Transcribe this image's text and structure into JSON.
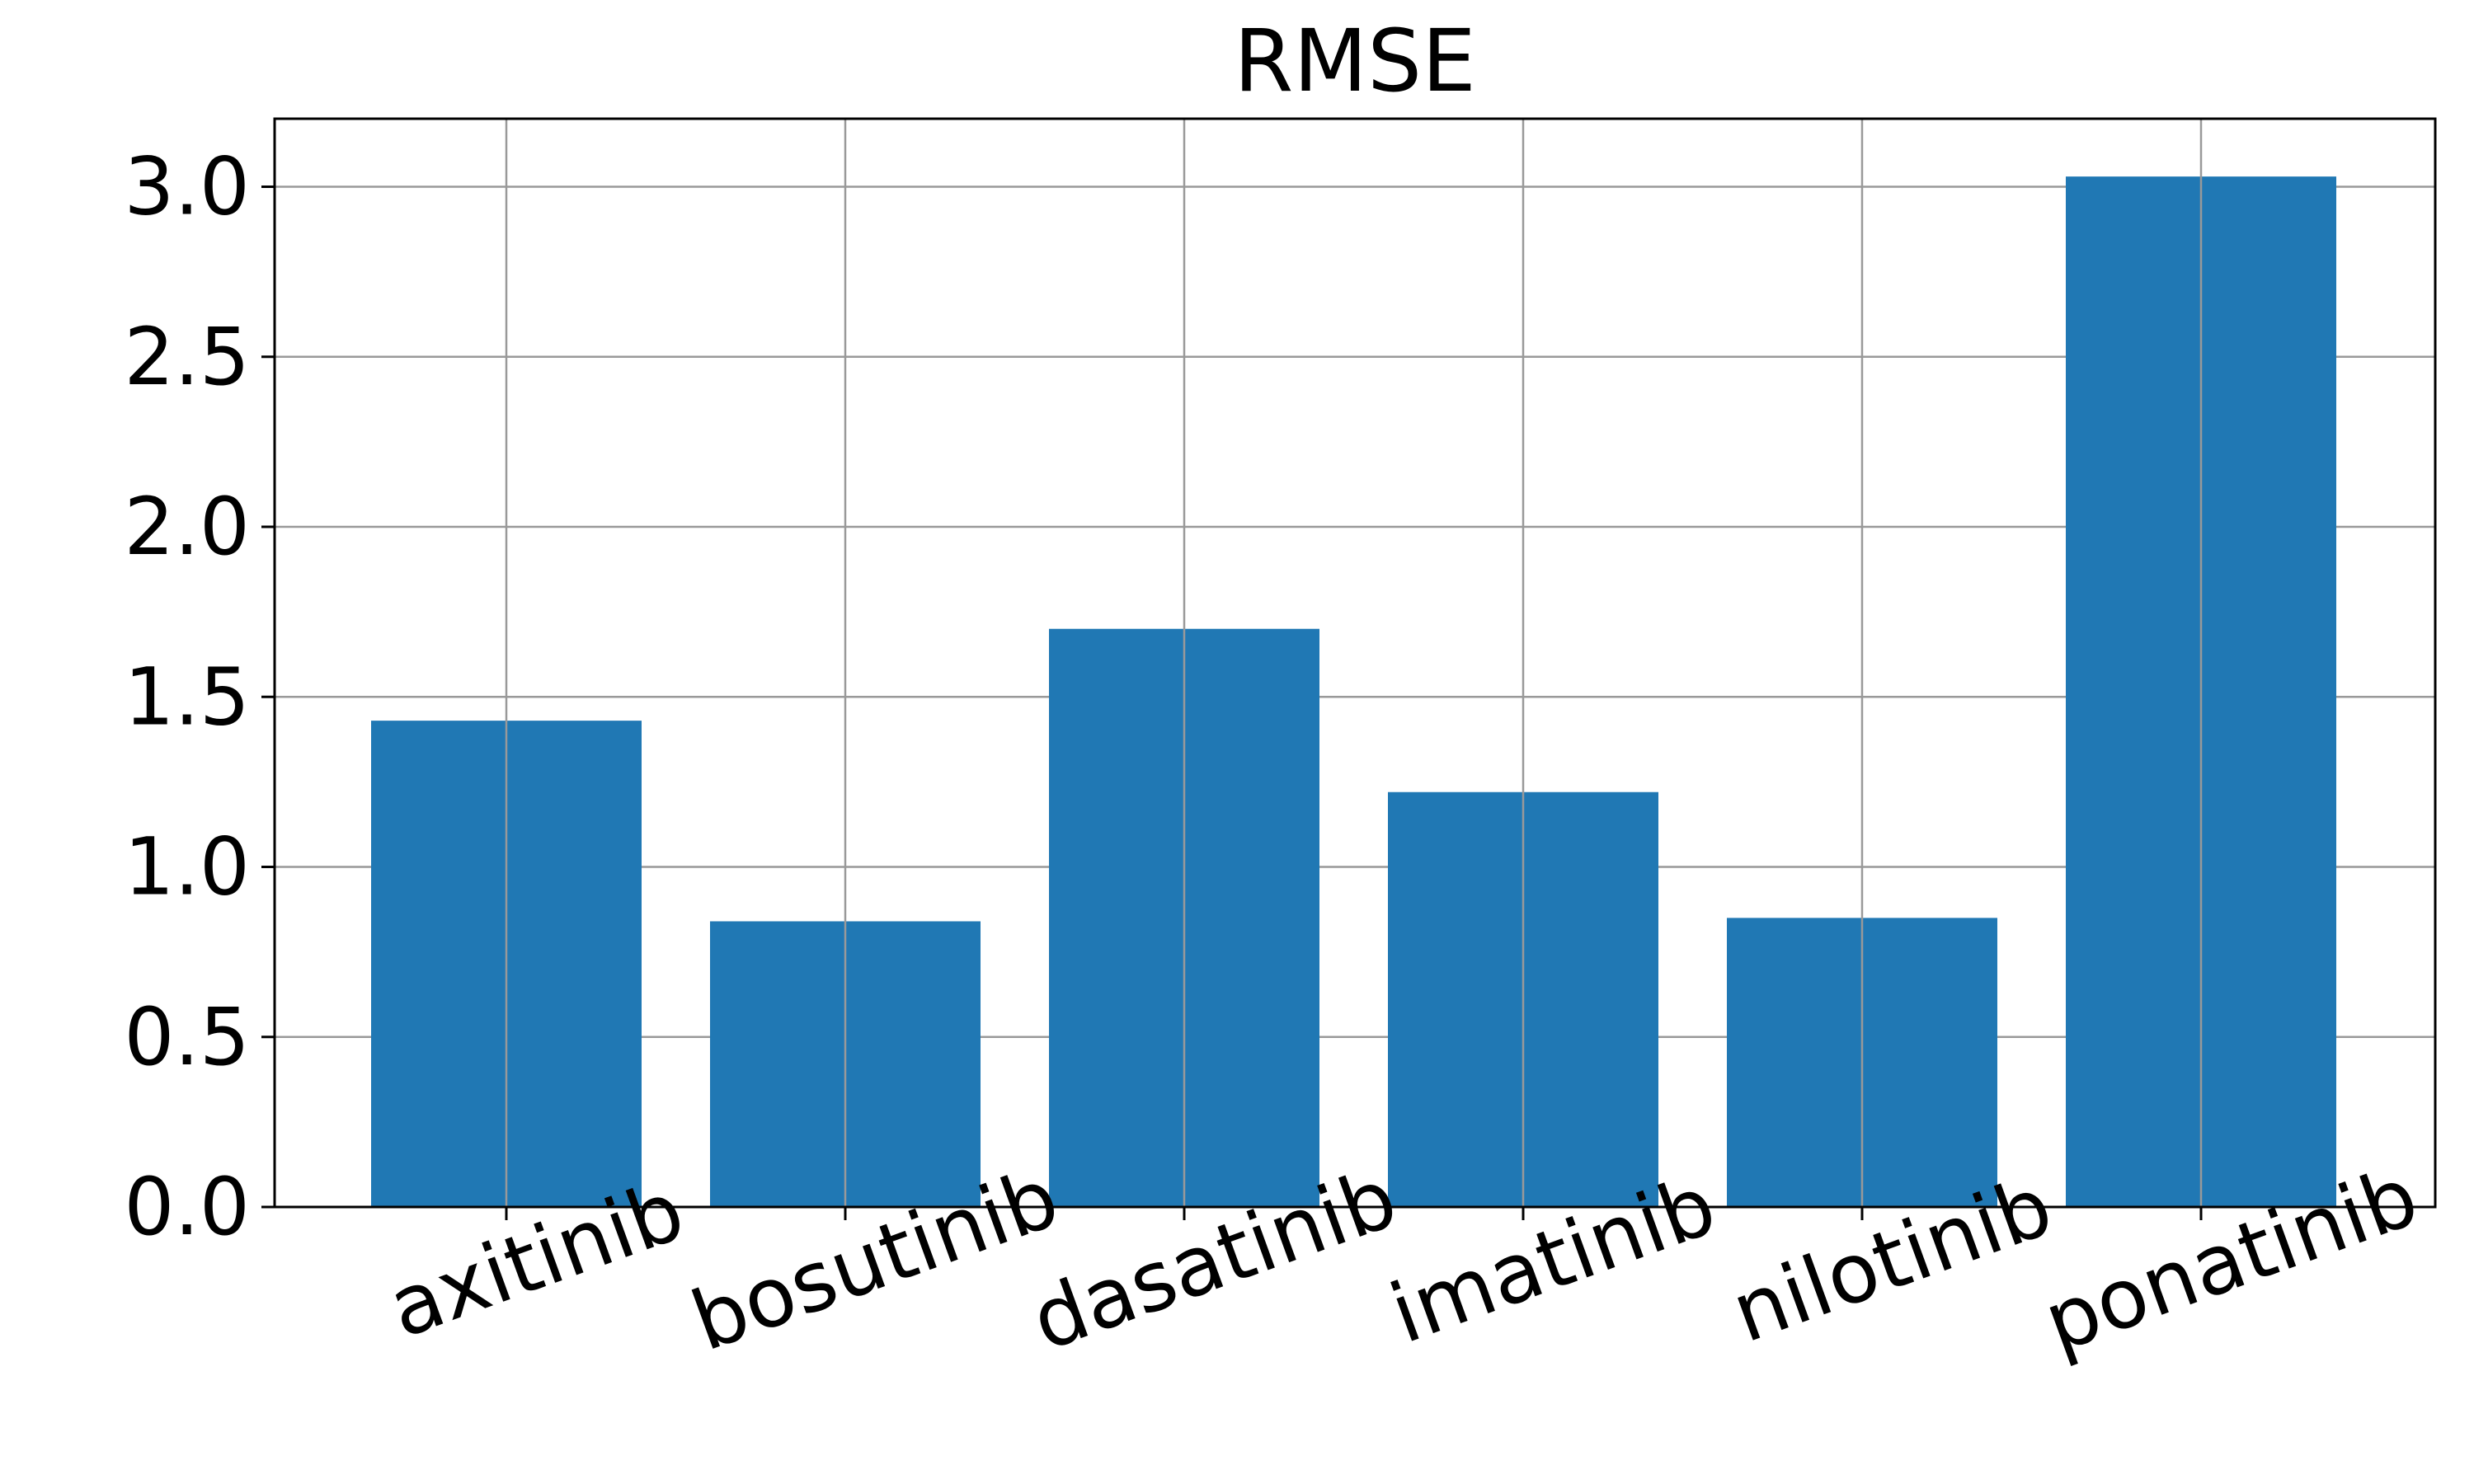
{
  "chart_data": {
    "type": "bar",
    "title": "RMSE",
    "xlabel": "",
    "ylabel": "",
    "categories": [
      "axitinib",
      "bosutinib",
      "dasatinib",
      "imatinib",
      "nilotinib",
      "ponatinib"
    ],
    "values": [
      1.43,
      0.84,
      1.7,
      1.22,
      0.85,
      3.03
    ],
    "ylim": [
      0,
      3.2
    ],
    "yticks": [
      "0.0",
      "0.5",
      "1.0",
      "1.5",
      "2.0",
      "2.5",
      "3.0"
    ],
    "grid": true,
    "legend": "none",
    "bar_color": "#2078b4",
    "grid_color": "#999999"
  }
}
